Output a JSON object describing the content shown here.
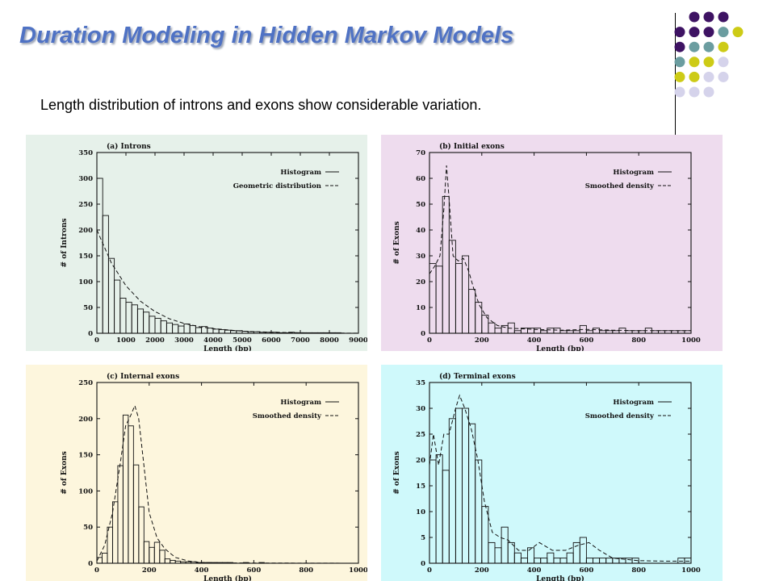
{
  "slide": {
    "title": "Duration Modeling in Hidden Markov Models",
    "subtitle": "Length distribution of introns and exons show considerable variation."
  },
  "colors": {
    "title": "#4f72c4",
    "panel_bgs": [
      "#e6f1ea",
      "#eedcee",
      "#fdf6dd",
      "#cff9fb"
    ],
    "dot_purple": "#3e1363",
    "dot_teal": "#6b9da0",
    "dot_yellow": "#cdcb16",
    "dot_lavender": "#d5d3eb"
  },
  "chart_data": [
    {
      "type": "bar",
      "title": "(a) Introns",
      "xlabel": "Length (bp)",
      "ylabel": "# of Introns",
      "xlim": [
        0,
        9000
      ],
      "ylim": [
        0,
        350
      ],
      "x_ticks": [
        0,
        1000,
        2000,
        3000,
        4000,
        5000,
        6000,
        7000,
        8000,
        9000
      ],
      "y_ticks": [
        0,
        50,
        100,
        150,
        200,
        250,
        300,
        350
      ],
      "bin_width": 200,
      "values": [
        300,
        228,
        145,
        103,
        68,
        60,
        55,
        47,
        41,
        33,
        29,
        24,
        20,
        17,
        14,
        18,
        15,
        11,
        13,
        10,
        8,
        7,
        6,
        5,
        5,
        4,
        3,
        3,
        2,
        2,
        2,
        1,
        1,
        2,
        1,
        1,
        1,
        1,
        1,
        1,
        1,
        1,
        0,
        0,
        0
      ],
      "series": [
        {
          "name": "Histogram",
          "style": "solid"
        },
        {
          "name": "Geometric distribution",
          "style": "dashed",
          "x": [
            0,
            500,
            1000,
            1500,
            2000,
            2500,
            3000,
            3500,
            4000,
            5000,
            6000,
            7000,
            8000,
            9000
          ],
          "y": [
            200,
            136,
            92,
            62,
            42,
            28,
            19,
            13,
            9,
            4,
            2,
            1,
            0.5,
            0.2
          ]
        }
      ],
      "legend": "top-right"
    },
    {
      "type": "bar",
      "title": "(b) Initial exons",
      "xlabel": "Length (bp)",
      "ylabel": "# of Exons",
      "xlim": [
        0,
        1000
      ],
      "ylim": [
        0,
        70
      ],
      "x_ticks": [
        0,
        200,
        400,
        600,
        800,
        1000
      ],
      "y_ticks": [
        0,
        10,
        20,
        30,
        40,
        50,
        60,
        70
      ],
      "bin_width": 25,
      "values": [
        27,
        26,
        53,
        36,
        27,
        30,
        17,
        12,
        7,
        4,
        2,
        3,
        4,
        1,
        2,
        2,
        2,
        1,
        2,
        2,
        1,
        1,
        1,
        3,
        1,
        2,
        1,
        1,
        1,
        2,
        1,
        1,
        1,
        2,
        1,
        1,
        1,
        1,
        1,
        1
      ],
      "series": [
        {
          "name": "Histogram",
          "style": "solid"
        },
        {
          "name": "Smoothed density",
          "style": "dashed",
          "x": [
            0,
            20,
            40,
            55,
            65,
            75,
            90,
            110,
            130,
            150,
            170,
            190,
            220,
            260,
            300,
            400,
            500,
            600,
            700,
            800,
            900,
            1000
          ],
          "y": [
            23,
            26,
            30,
            48,
            65,
            52,
            30,
            28,
            29,
            24,
            17,
            11,
            6,
            3,
            2,
            1.5,
            1.2,
            1.5,
            1.2,
            1,
            1,
            1
          ]
        }
      ],
      "legend": "top-right"
    },
    {
      "type": "bar",
      "title": "(c) Internal exons",
      "xlabel": "Length (bp)",
      "ylabel": "# of Exons",
      "xlim": [
        0,
        1000
      ],
      "ylim": [
        0,
        250
      ],
      "x_ticks": [
        0,
        200,
        400,
        600,
        800,
        1000
      ],
      "y_ticks": [
        0,
        50,
        100,
        150,
        200,
        250
      ],
      "bin_width": 20,
      "values": [
        8,
        14,
        50,
        85,
        135,
        205,
        190,
        136,
        78,
        30,
        22,
        29,
        18,
        6,
        4,
        3,
        2,
        2,
        2,
        1,
        1,
        1,
        1,
        1,
        1,
        1,
        0,
        0,
        1,
        0,
        0,
        1,
        0,
        0,
        0,
        0,
        0,
        0,
        0,
        0,
        0,
        0,
        0,
        0,
        0,
        0,
        0,
        0,
        0,
        0
      ],
      "series": [
        {
          "name": "Histogram",
          "style": "solid"
        },
        {
          "name": "Smoothed density",
          "style": "dashed",
          "x": [
            0,
            30,
            60,
            90,
            110,
            130,
            145,
            160,
            180,
            200,
            230,
            260,
            300,
            350,
            400,
            500,
            600,
            1000
          ],
          "y": [
            3,
            25,
            70,
            140,
            190,
            205,
            218,
            200,
            135,
            70,
            35,
            20,
            8,
            3,
            1,
            0.5,
            0.3,
            0
          ]
        }
      ],
      "legend": "top-right"
    },
    {
      "type": "bar",
      "title": "(d) Terminal exons",
      "xlabel": "Length (bp)",
      "ylabel": "# of Exons",
      "xlim": [
        0,
        1000
      ],
      "ylim": [
        0,
        35
      ],
      "x_ticks": [
        0,
        200,
        400,
        600,
        800,
        1000
      ],
      "y_ticks": [
        0,
        5,
        10,
        15,
        20,
        25,
        30,
        35
      ],
      "bin_width": 25,
      "values": [
        20,
        21,
        18,
        28,
        30,
        30,
        27,
        20,
        11,
        4,
        3,
        7,
        4,
        2,
        1,
        3,
        1,
        1,
        2,
        1,
        1,
        2,
        4,
        5,
        1,
        1,
        1,
        1,
        1,
        1,
        1,
        1,
        0,
        0,
        0,
        0,
        0,
        0,
        1,
        1
      ],
      "series": [
        {
          "name": "Histogram",
          "style": "solid"
        },
        {
          "name": "Smoothed density",
          "style": "dashed",
          "x": [
            0,
            15,
            35,
            55,
            75,
            100,
            115,
            135,
            160,
            185,
            210,
            240,
            270,
            300,
            340,
            380,
            420,
            470,
            520,
            570,
            610,
            650,
            700,
            800,
            900,
            1000
          ],
          "y": [
            19,
            25,
            19,
            25,
            25,
            30,
            32.5,
            30,
            26,
            20,
            12,
            6,
            5,
            4.5,
            2.5,
            2.5,
            4,
            2.5,
            2.5,
            3.5,
            4,
            2.5,
            1,
            0.5,
            0.4,
            0.4
          ]
        }
      ],
      "legend": "top-right"
    }
  ]
}
